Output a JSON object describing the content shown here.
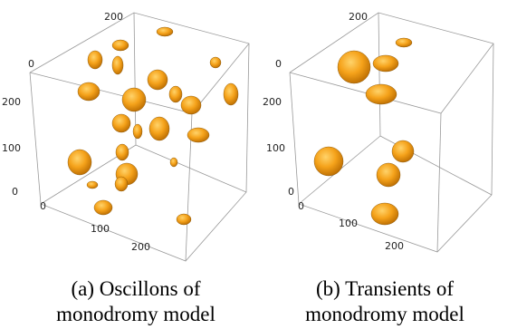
{
  "panels": [
    {
      "tick_labels": [
        "200",
        "0",
        "200",
        "100",
        "0",
        "0",
        "100",
        "200"
      ],
      "caption": [
        "(a) Oscillons of",
        "monodromy model"
      ]
    },
    {
      "tick_labels": [
        "200",
        "0",
        "200",
        "100",
        "0",
        "0",
        "100",
        "200"
      ],
      "caption": [
        "(b) Transients of",
        "monodromy model"
      ]
    }
  ]
}
